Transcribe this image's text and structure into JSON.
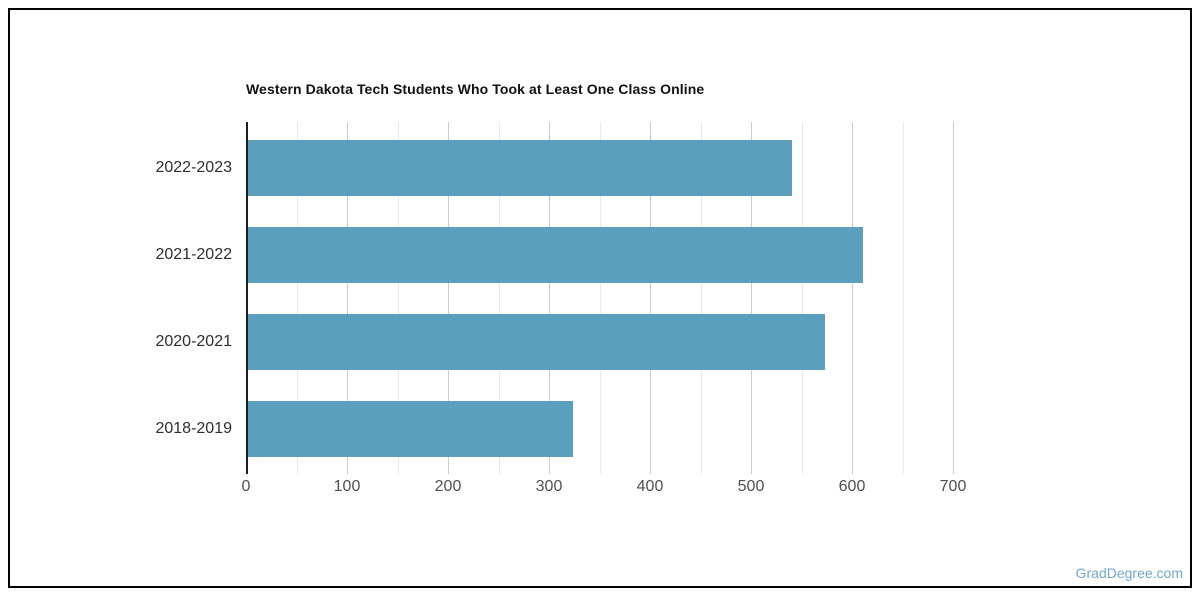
{
  "title": "Western Dakota Tech Students Who Took at Least One Class Online",
  "watermark": "GradDegree.com",
  "chart_data": {
    "type": "bar",
    "orientation": "horizontal",
    "title": "Western Dakota Tech Students Who Took at Least One Class Online",
    "categories": [
      "2022-2023",
      "2021-2022",
      "2020-2021",
      "2018-2019"
    ],
    "values": [
      539,
      609,
      571,
      322
    ],
    "xlabel": "",
    "ylabel": "",
    "xlim": [
      0,
      700
    ],
    "x_ticks": [
      0,
      100,
      200,
      300,
      400,
      500,
      600,
      700
    ],
    "minor_tick_step": 50,
    "grid": true,
    "legend": false,
    "bar_color": "#5AA0BE"
  },
  "colors": {
    "bar": "#5AA0BE",
    "major_grid": "#cccccc",
    "minor_grid": "#e8e8e8",
    "axis": "#1f1f1f",
    "tick_label": "#4f4f4f",
    "category_label": "#2e2e2e",
    "title": "#111111",
    "watermark": "#6FA8C6",
    "frame_border": "#000000",
    "background": "#ffffff"
  }
}
